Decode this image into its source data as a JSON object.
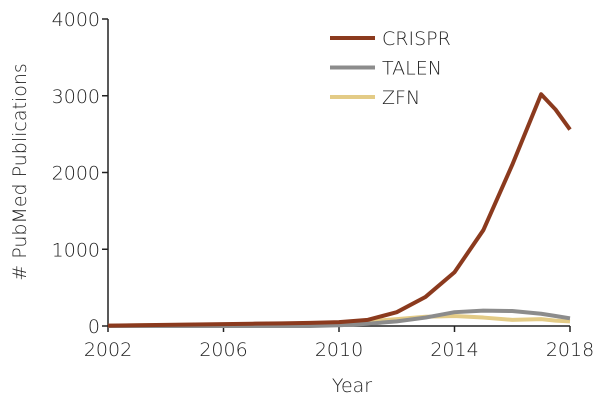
{
  "chart_data": {
    "type": "line",
    "x": [
      2002,
      2003,
      2004,
      2005,
      2006,
      2007,
      2008,
      2009,
      2010,
      2011,
      2012,
      2013,
      2014,
      2015,
      2016,
      2017,
      2017.5,
      2018
    ],
    "series": [
      {
        "name": "CRISPR",
        "color": "#8b3a1e",
        "values": [
          5,
          10,
          15,
          20,
          25,
          30,
          35,
          40,
          50,
          80,
          180,
          380,
          700,
          1250,
          2100,
          3020,
          2820,
          2560
        ]
      },
      {
        "name": "TALEN",
        "color": "#8c8c8c",
        "values": [
          0,
          0,
          0,
          0,
          0,
          0,
          0,
          0,
          10,
          30,
          60,
          110,
          180,
          200,
          195,
          160,
          130,
          100
        ]
      },
      {
        "name": "ZFN",
        "color": "#e3cb86",
        "values": [
          5,
          8,
          12,
          16,
          20,
          24,
          28,
          33,
          40,
          60,
          90,
          120,
          130,
          110,
          80,
          90,
          70,
          60
        ]
      }
    ],
    "xlabel": "Year",
    "ylabel": "# PubMed Publications",
    "xlim": [
      2002,
      2018
    ],
    "xticks": [
      2002,
      2006,
      2010,
      2014,
      2018
    ],
    "ylim": [
      0,
      4000
    ],
    "yticks": [
      0,
      1000,
      2000,
      3000,
      4000
    ],
    "legend": "top"
  }
}
